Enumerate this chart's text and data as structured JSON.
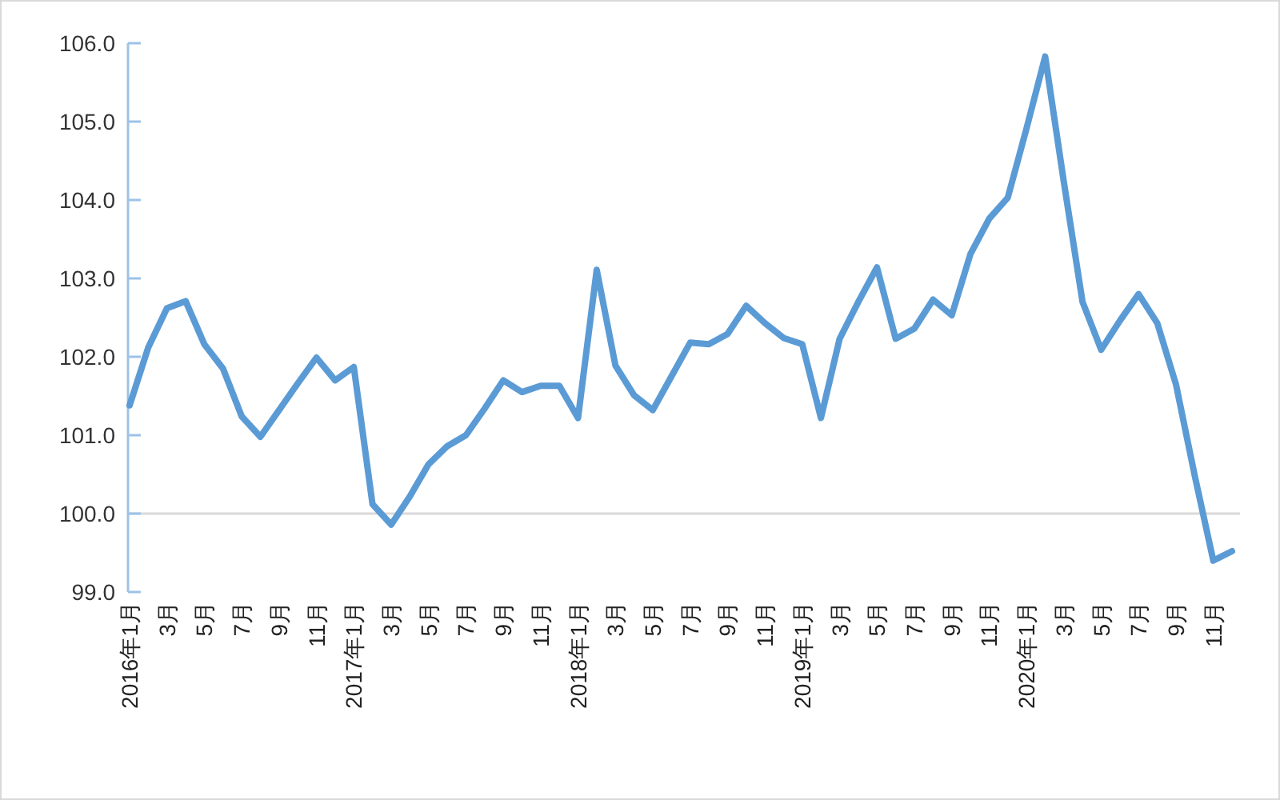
{
  "chart_data": {
    "type": "line",
    "categories": [
      "2016年1月",
      null,
      "3月",
      null,
      "5月",
      null,
      "7月",
      null,
      "9月",
      null,
      "11月",
      null,
      "2017年1月",
      null,
      "3月",
      null,
      "5月",
      null,
      "7月",
      null,
      "9月",
      null,
      "11月",
      null,
      "2018年1月",
      null,
      "3月",
      null,
      "5月",
      null,
      "7月",
      null,
      "9月",
      null,
      "11月",
      null,
      "2019年1月",
      null,
      "3月",
      null,
      "5月",
      null,
      "7月",
      null,
      "9月",
      null,
      "11月",
      null,
      "2020年1月",
      null,
      "3月",
      null,
      "5月",
      null,
      "7月",
      null,
      "9月",
      null,
      "11月",
      null
    ],
    "series": [
      {
        "color": "#5b9bd5",
        "values": [
          101.38,
          102.12,
          102.62,
          102.71,
          102.16,
          101.85,
          101.24,
          100.98,
          101.32,
          101.66,
          101.99,
          101.7,
          101.87,
          100.12,
          99.86,
          100.22,
          100.63,
          100.86,
          101.0,
          101.34,
          101.7,
          101.55,
          101.63,
          101.63,
          101.22,
          103.11,
          101.89,
          101.51,
          101.32,
          101.75,
          102.18,
          102.16,
          102.29,
          102.65,
          102.43,
          102.24,
          102.16,
          101.22,
          102.23,
          102.7,
          103.14,
          102.23,
          102.36,
          102.73,
          102.53,
          103.31,
          103.76,
          104.03,
          104.91,
          105.83,
          104.23,
          102.7,
          102.09,
          102.46,
          102.8,
          102.43,
          101.65,
          100.49,
          99.4,
          99.52
        ]
      }
    ],
    "ylim": [
      99,
      106
    ],
    "yticks": [
      {
        "value": 99,
        "label": "99.0"
      },
      {
        "value": 100,
        "label": "100.0"
      },
      {
        "value": 101,
        "label": "101.0"
      },
      {
        "value": 102,
        "label": "102.0"
      },
      {
        "value": 103,
        "label": "103.0"
      },
      {
        "value": 104,
        "label": "104.0"
      },
      {
        "value": 105,
        "label": "105.0"
      },
      {
        "value": 106,
        "label": "106.0"
      }
    ],
    "ref_lines": [
      {
        "axis": "y",
        "value": 100,
        "color": "#d9d9d9"
      }
    ],
    "marker": "none",
    "line_style": "solid",
    "grid": false
  }
}
